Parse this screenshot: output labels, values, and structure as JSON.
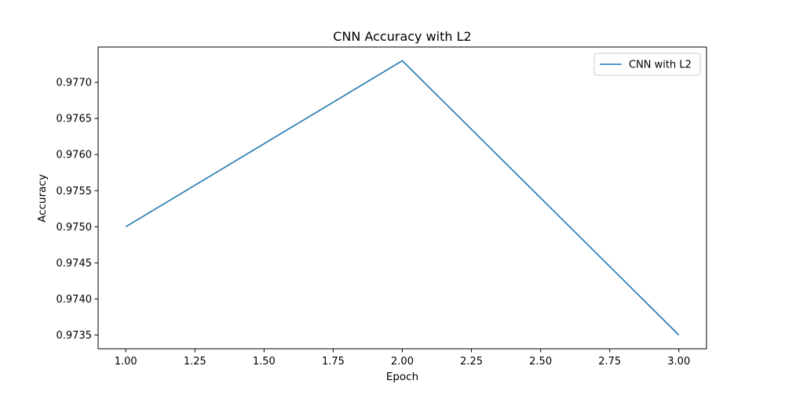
{
  "chart_data": {
    "type": "line",
    "title": "CNN Accuracy with L2",
    "xlabel": "Epoch",
    "ylabel": "Accuracy",
    "x": [
      1.0,
      2.0,
      3.0
    ],
    "series": [
      {
        "name": "CNN with L2",
        "values": [
          0.975,
          0.9773,
          0.9735
        ],
        "color": "#1f77b4"
      }
    ],
    "xlim": [
      0.9,
      3.1
    ],
    "ylim": [
      0.97331,
      0.97749
    ],
    "x_ticks": [
      1.0,
      1.25,
      1.5,
      1.75,
      2.0,
      2.25,
      2.5,
      2.75,
      3.0
    ],
    "x_tick_labels": [
      "1.00",
      "1.25",
      "1.50",
      "1.75",
      "2.00",
      "2.25",
      "2.50",
      "2.75",
      "3.00"
    ],
    "y_ticks": [
      0.9735,
      0.974,
      0.9745,
      0.975,
      0.9755,
      0.976,
      0.9765,
      0.977
    ],
    "y_tick_labels": [
      "0.9735",
      "0.9740",
      "0.9745",
      "0.9750",
      "0.9755",
      "0.9760",
      "0.9765",
      "0.9770"
    ],
    "grid": false,
    "legend_position": "top-right"
  }
}
